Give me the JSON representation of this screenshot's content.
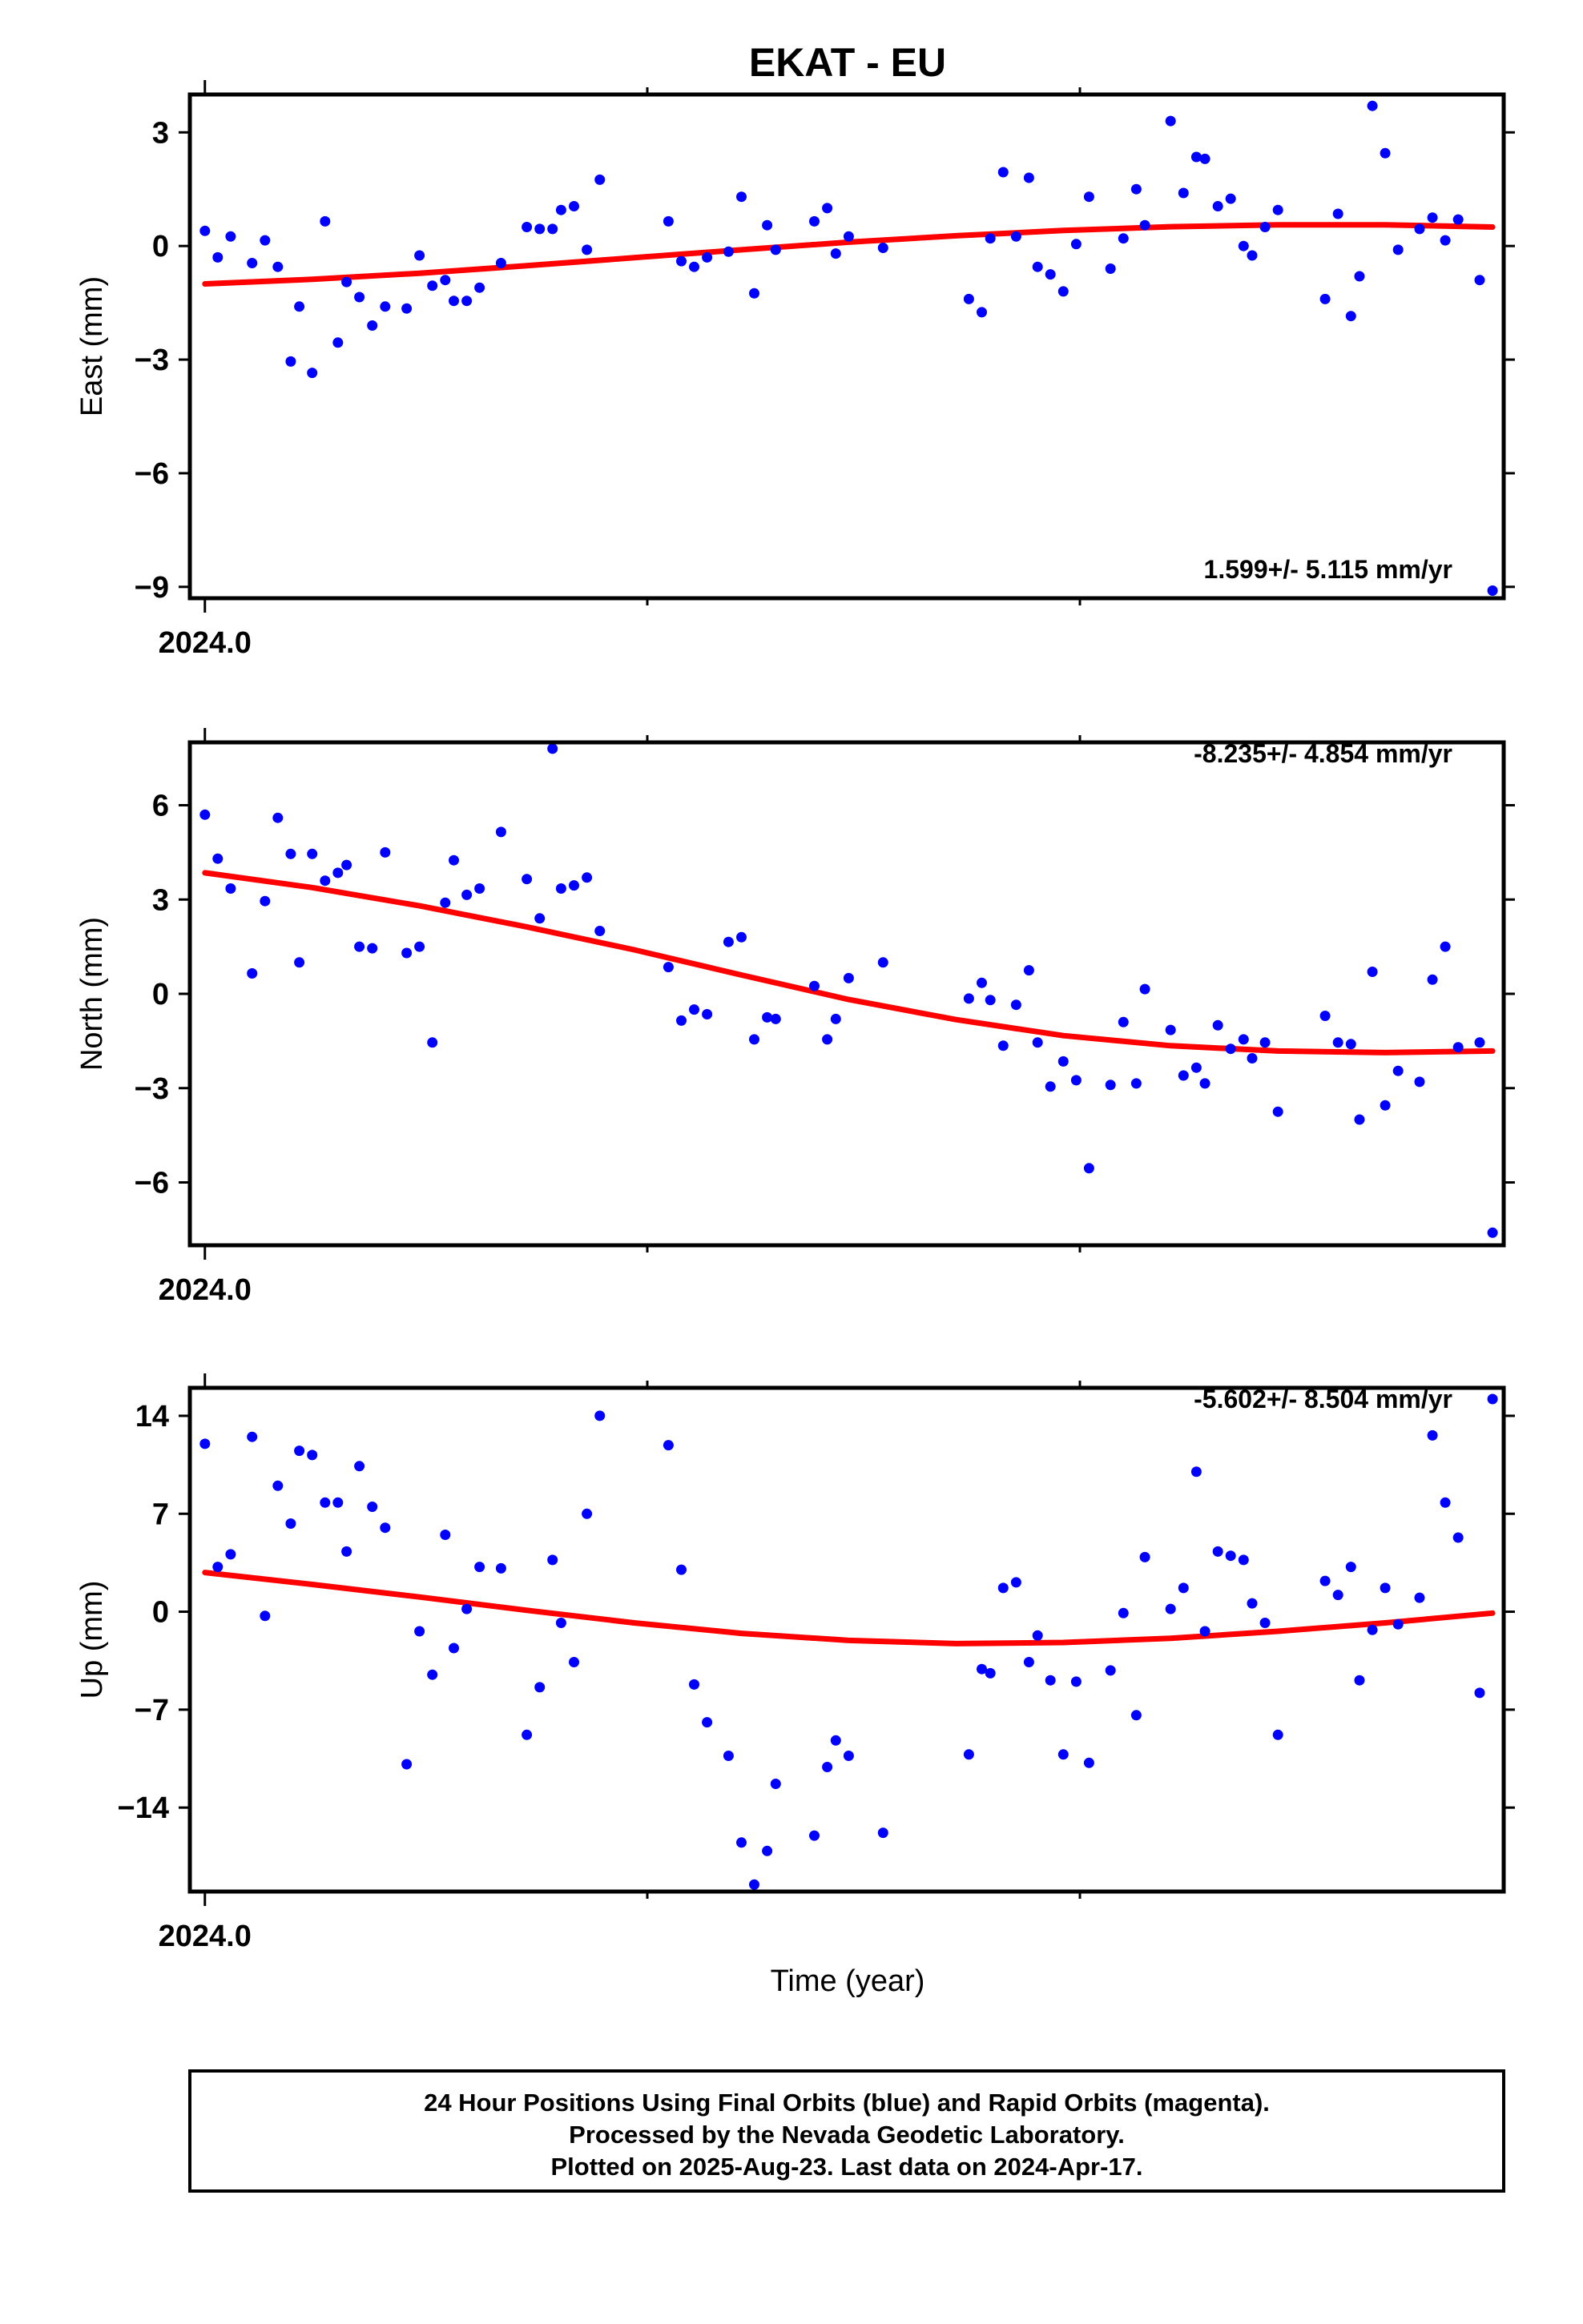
{
  "title": "EKAT - EU",
  "x_axis_label": "Time (year)",
  "footer": {
    "line1": "24 Hour Positions Using Final Orbits (blue) and Rapid Orbits (magenta).",
    "line2": "Processed by the Nevada Geodetic Laboratory.",
    "line3": "Plotted on 2025-Aug-23. Last data on 2024-Apr-17."
  },
  "colors": {
    "points": "#0000ff",
    "fit": "#ff0000",
    "frame": "#000000"
  },
  "chart_data": [
    {
      "type": "scatter",
      "ylabel": "East (mm)",
      "ylim": [
        -9.3,
        4.0
      ],
      "yticks": [
        3,
        0,
        -3,
        -6,
        -9
      ],
      "ytick_labels": [
        "3",
        "0",
        "−3",
        "−6",
        "−9"
      ],
      "xlim": [
        2023.9965,
        2024.3026
      ],
      "xtick_label": "2024.0",
      "rate_label": "1.599+/- 5.115 mm/yr",
      "points": [
        [
          2024.0,
          0.4
        ],
        [
          2024.003,
          -0.3
        ],
        [
          2024.006,
          0.25
        ],
        [
          2024.011,
          -0.45
        ],
        [
          2024.014,
          0.15
        ],
        [
          2024.017,
          -0.55
        ],
        [
          2024.02,
          -3.05
        ],
        [
          2024.022,
          -1.6
        ],
        [
          2024.025,
          -3.35
        ],
        [
          2024.028,
          0.65
        ],
        [
          2024.031,
          -2.55
        ],
        [
          2024.033,
          -0.95
        ],
        [
          2024.036,
          -1.35
        ],
        [
          2024.039,
          -2.1
        ],
        [
          2024.042,
          -1.6
        ],
        [
          2024.047,
          -1.65
        ],
        [
          2024.05,
          -0.25
        ],
        [
          2024.053,
          -1.05
        ],
        [
          2024.056,
          -0.9
        ],
        [
          2024.058,
          -1.45
        ],
        [
          2024.061,
          -1.45
        ],
        [
          2024.064,
          -1.1
        ],
        [
          2024.069,
          -0.45
        ],
        [
          2024.075,
          0.5
        ],
        [
          2024.078,
          0.45
        ],
        [
          2024.081,
          0.45
        ],
        [
          2024.083,
          0.95
        ],
        [
          2024.086,
          1.05
        ],
        [
          2024.089,
          -0.1
        ],
        [
          2024.092,
          1.75
        ],
        [
          2024.108,
          0.65
        ],
        [
          2024.111,
          -0.4
        ],
        [
          2024.114,
          -0.55
        ],
        [
          2024.117,
          -0.3
        ],
        [
          2024.122,
          -0.15
        ],
        [
          2024.125,
          1.3
        ],
        [
          2024.128,
          -1.25
        ],
        [
          2024.131,
          0.55
        ],
        [
          2024.133,
          -0.1
        ],
        [
          2024.142,
          0.65
        ],
        [
          2024.145,
          1.0
        ],
        [
          2024.147,
          -0.2
        ],
        [
          2024.15,
          0.25
        ],
        [
          2024.158,
          -0.05
        ],
        [
          2024.178,
          -1.4
        ],
        [
          2024.181,
          -1.75
        ],
        [
          2024.183,
          0.2
        ],
        [
          2024.186,
          1.95
        ],
        [
          2024.189,
          0.25
        ],
        [
          2024.192,
          1.8
        ],
        [
          2024.194,
          -0.55
        ],
        [
          2024.197,
          -0.75
        ],
        [
          2024.2,
          -1.2
        ],
        [
          2024.203,
          0.05
        ],
        [
          2024.206,
          1.3
        ],
        [
          2024.211,
          -0.6
        ],
        [
          2024.214,
          0.2
        ],
        [
          2024.217,
          1.5
        ],
        [
          2024.219,
          0.55
        ],
        [
          2024.225,
          3.3
        ],
        [
          2024.228,
          1.4
        ],
        [
          2024.231,
          2.35
        ],
        [
          2024.233,
          2.3
        ],
        [
          2024.236,
          1.05
        ],
        [
          2024.239,
          1.25
        ],
        [
          2024.242,
          0.0
        ],
        [
          2024.244,
          -0.25
        ],
        [
          2024.247,
          0.5
        ],
        [
          2024.25,
          0.95
        ],
        [
          2024.261,
          -1.4
        ],
        [
          2024.264,
          0.85
        ],
        [
          2024.267,
          -1.85
        ],
        [
          2024.269,
          -0.8
        ],
        [
          2024.272,
          3.7
        ],
        [
          2024.275,
          2.45
        ],
        [
          2024.278,
          -0.1
        ],
        [
          2024.283,
          0.45
        ],
        [
          2024.286,
          0.75
        ],
        [
          2024.289,
          0.15
        ],
        [
          2024.292,
          0.7
        ],
        [
          2024.297,
          -0.9
        ],
        [
          2024.3,
          -9.1
        ]
      ],
      "fit": [
        [
          2024.0,
          -1.0
        ],
        [
          2024.025,
          -0.88
        ],
        [
          2024.05,
          -0.72
        ],
        [
          2024.075,
          -0.52
        ],
        [
          2024.1,
          -0.31
        ],
        [
          2024.125,
          -0.1
        ],
        [
          2024.15,
          0.1
        ],
        [
          2024.175,
          0.27
        ],
        [
          2024.2,
          0.41
        ],
        [
          2024.225,
          0.51
        ],
        [
          2024.25,
          0.56
        ],
        [
          2024.275,
          0.56
        ],
        [
          2024.3,
          0.5
        ]
      ]
    },
    {
      "type": "scatter",
      "ylabel": "North (mm)",
      "ylim": [
        -8.0,
        8.0
      ],
      "yticks": [
        6,
        3,
        0,
        -3,
        -6
      ],
      "ytick_labels": [
        "6",
        "3",
        "0",
        "−3",
        "−6"
      ],
      "xlim": [
        2023.9965,
        2024.3026
      ],
      "xtick_label": "2024.0",
      "rate_label": "-8.235+/- 4.854 mm/yr",
      "points": [
        [
          2024.0,
          5.7
        ],
        [
          2024.003,
          4.3
        ],
        [
          2024.006,
          3.35
        ],
        [
          2024.011,
          0.65
        ],
        [
          2024.014,
          2.95
        ],
        [
          2024.017,
          5.6
        ],
        [
          2024.02,
          4.45
        ],
        [
          2024.022,
          1.0
        ],
        [
          2024.025,
          4.45
        ],
        [
          2024.028,
          3.6
        ],
        [
          2024.031,
          3.85
        ],
        [
          2024.033,
          4.1
        ],
        [
          2024.036,
          1.5
        ],
        [
          2024.039,
          1.45
        ],
        [
          2024.042,
          4.5
        ],
        [
          2024.047,
          1.3
        ],
        [
          2024.05,
          1.5
        ],
        [
          2024.053,
          -1.55
        ],
        [
          2024.056,
          2.9
        ],
        [
          2024.058,
          4.25
        ],
        [
          2024.061,
          3.15
        ],
        [
          2024.064,
          3.35
        ],
        [
          2024.069,
          5.15
        ],
        [
          2024.075,
          3.65
        ],
        [
          2024.078,
          2.4
        ],
        [
          2024.081,
          7.8
        ],
        [
          2024.083,
          3.35
        ],
        [
          2024.086,
          3.45
        ],
        [
          2024.089,
          3.7
        ],
        [
          2024.092,
          2.0
        ],
        [
          2024.108,
          0.85
        ],
        [
          2024.111,
          -0.85
        ],
        [
          2024.114,
          -0.5
        ],
        [
          2024.117,
          -0.65
        ],
        [
          2024.122,
          1.65
        ],
        [
          2024.125,
          1.8
        ],
        [
          2024.128,
          -1.45
        ],
        [
          2024.131,
          -0.75
        ],
        [
          2024.133,
          -0.8
        ],
        [
          2024.142,
          0.25
        ],
        [
          2024.145,
          -1.45
        ],
        [
          2024.147,
          -0.8
        ],
        [
          2024.15,
          0.5
        ],
        [
          2024.158,
          1.0
        ],
        [
          2024.178,
          -0.15
        ],
        [
          2024.181,
          0.35
        ],
        [
          2024.183,
          -0.2
        ],
        [
          2024.186,
          -1.65
        ],
        [
          2024.189,
          -0.35
        ],
        [
          2024.192,
          0.75
        ],
        [
          2024.194,
          -1.55
        ],
        [
          2024.197,
          -2.95
        ],
        [
          2024.2,
          -2.15
        ],
        [
          2024.203,
          -2.75
        ],
        [
          2024.206,
          -5.55
        ],
        [
          2024.211,
          -2.9
        ],
        [
          2024.214,
          -0.9
        ],
        [
          2024.217,
          -2.85
        ],
        [
          2024.219,
          0.15
        ],
        [
          2024.225,
          -1.15
        ],
        [
          2024.228,
          -2.6
        ],
        [
          2024.231,
          -2.35
        ],
        [
          2024.233,
          -2.85
        ],
        [
          2024.236,
          -1.0
        ],
        [
          2024.239,
          -1.75
        ],
        [
          2024.242,
          -1.45
        ],
        [
          2024.244,
          -2.05
        ],
        [
          2024.247,
          -1.55
        ],
        [
          2024.25,
          -3.75
        ],
        [
          2024.261,
          -0.7
        ],
        [
          2024.264,
          -1.55
        ],
        [
          2024.267,
          -1.6
        ],
        [
          2024.269,
          -4.0
        ],
        [
          2024.272,
          0.7
        ],
        [
          2024.275,
          -3.55
        ],
        [
          2024.278,
          -2.45
        ],
        [
          2024.283,
          -2.8
        ],
        [
          2024.286,
          0.45
        ],
        [
          2024.289,
          1.5
        ],
        [
          2024.292,
          -1.7
        ],
        [
          2024.297,
          -1.55
        ],
        [
          2024.3,
          -7.6
        ]
      ],
      "fit": [
        [
          2024.0,
          3.85
        ],
        [
          2024.025,
          3.38
        ],
        [
          2024.05,
          2.8
        ],
        [
          2024.075,
          2.13
        ],
        [
          2024.1,
          1.4
        ],
        [
          2024.125,
          0.6
        ],
        [
          2024.15,
          -0.18
        ],
        [
          2024.175,
          -0.82
        ],
        [
          2024.2,
          -1.33
        ],
        [
          2024.225,
          -1.65
        ],
        [
          2024.25,
          -1.82
        ],
        [
          2024.275,
          -1.87
        ],
        [
          2024.3,
          -1.82
        ]
      ]
    },
    {
      "type": "scatter",
      "ylabel": "Up (mm)",
      "ylim": [
        -20.0,
        16.0
      ],
      "yticks": [
        14,
        7,
        0,
        -7,
        -14
      ],
      "ytick_labels": [
        "14",
        "7",
        "0",
        "−7",
        "−14"
      ],
      "xlim": [
        2023.9965,
        2024.3026
      ],
      "xtick_label": "2024.0",
      "rate_label": "-5.602+/- 8.504 mm/yr",
      "points": [
        [
          2024.0,
          12.0
        ],
        [
          2024.003,
          3.2
        ],
        [
          2024.006,
          4.1
        ],
        [
          2024.011,
          12.5
        ],
        [
          2024.014,
          -0.3
        ],
        [
          2024.017,
          9.0
        ],
        [
          2024.02,
          6.3
        ],
        [
          2024.022,
          11.5
        ],
        [
          2024.025,
          11.2
        ],
        [
          2024.028,
          7.8
        ],
        [
          2024.031,
          7.8
        ],
        [
          2024.033,
          4.3
        ],
        [
          2024.036,
          10.4
        ],
        [
          2024.039,
          7.5
        ],
        [
          2024.042,
          6.0
        ],
        [
          2024.047,
          -10.9
        ],
        [
          2024.05,
          -1.4
        ],
        [
          2024.053,
          -4.5
        ],
        [
          2024.056,
          5.5
        ],
        [
          2024.058,
          -2.6
        ],
        [
          2024.061,
          0.2
        ],
        [
          2024.064,
          3.2
        ],
        [
          2024.069,
          3.1
        ],
        [
          2024.075,
          -8.8
        ],
        [
          2024.078,
          -5.4
        ],
        [
          2024.081,
          3.7
        ],
        [
          2024.083,
          -0.8
        ],
        [
          2024.086,
          -3.6
        ],
        [
          2024.089,
          7.0
        ],
        [
          2024.092,
          14.0
        ],
        [
          2024.108,
          11.9
        ],
        [
          2024.111,
          3.0
        ],
        [
          2024.114,
          -5.2
        ],
        [
          2024.117,
          -7.9
        ],
        [
          2024.122,
          -10.3
        ],
        [
          2024.125,
          -16.5
        ],
        [
          2024.128,
          -19.5
        ],
        [
          2024.131,
          -17.1
        ],
        [
          2024.133,
          -12.3
        ],
        [
          2024.142,
          -16.0
        ],
        [
          2024.145,
          -11.1
        ],
        [
          2024.147,
          -9.2
        ],
        [
          2024.15,
          -10.3
        ],
        [
          2024.158,
          -15.8
        ],
        [
          2024.178,
          -10.2
        ],
        [
          2024.181,
          -4.1
        ],
        [
          2024.183,
          -4.4
        ],
        [
          2024.186,
          1.7
        ],
        [
          2024.189,
          2.1
        ],
        [
          2024.192,
          -3.6
        ],
        [
          2024.194,
          -1.7
        ],
        [
          2024.197,
          -4.9
        ],
        [
          2024.2,
          -10.2
        ],
        [
          2024.203,
          -5.0
        ],
        [
          2024.206,
          -10.8
        ],
        [
          2024.211,
          -4.2
        ],
        [
          2024.214,
          -0.1
        ],
        [
          2024.217,
          -7.4
        ],
        [
          2024.219,
          3.9
        ],
        [
          2024.225,
          0.2
        ],
        [
          2024.228,
          1.7
        ],
        [
          2024.231,
          10.0
        ],
        [
          2024.233,
          -1.4
        ],
        [
          2024.236,
          4.3
        ],
        [
          2024.239,
          4.0
        ],
        [
          2024.242,
          3.7
        ],
        [
          2024.244,
          0.6
        ],
        [
          2024.247,
          -0.8
        ],
        [
          2024.25,
          -8.8
        ],
        [
          2024.261,
          2.2
        ],
        [
          2024.264,
          1.2
        ],
        [
          2024.267,
          3.2
        ],
        [
          2024.269,
          -4.9
        ],
        [
          2024.272,
          -1.3
        ],
        [
          2024.275,
          1.7
        ],
        [
          2024.278,
          -0.9
        ],
        [
          2024.283,
          1.0
        ],
        [
          2024.286,
          12.6
        ],
        [
          2024.289,
          7.8
        ],
        [
          2024.292,
          5.3
        ],
        [
          2024.297,
          -5.8
        ],
        [
          2024.3,
          15.2
        ]
      ],
      "fit": [
        [
          2024.0,
          2.8
        ],
        [
          2024.025,
          1.95
        ],
        [
          2024.05,
          1.05
        ],
        [
          2024.075,
          0.1
        ],
        [
          2024.1,
          -0.8
        ],
        [
          2024.125,
          -1.55
        ],
        [
          2024.15,
          -2.05
        ],
        [
          2024.175,
          -2.28
        ],
        [
          2024.2,
          -2.2
        ],
        [
          2024.225,
          -1.9
        ],
        [
          2024.25,
          -1.4
        ],
        [
          2024.275,
          -0.8
        ],
        [
          2024.3,
          -0.1
        ]
      ]
    }
  ]
}
